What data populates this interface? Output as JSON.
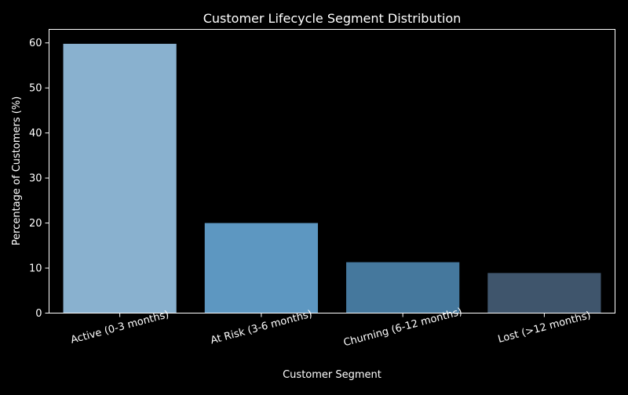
{
  "chart_data": {
    "type": "bar",
    "title": "Customer Lifecycle Segment Distribution",
    "xlabel": "Customer Segment",
    "ylabel": "Percentage of Customers (%)",
    "categories": [
      "Active (0-3 months)",
      "At Risk (3-6 months)",
      "Churning (6-12 months)",
      "Lost (>12 months)"
    ],
    "values": [
      59.8,
      20.0,
      11.3,
      8.9
    ],
    "ylim": [
      0,
      63
    ],
    "yticks": [
      "0",
      "10",
      "20",
      "30",
      "40",
      "50",
      "60"
    ],
    "bar_colors": [
      "#89b1cf",
      "#5d97c1",
      "#45789d",
      "#3f556c"
    ],
    "grid": false,
    "legend": "none"
  },
  "colors": {
    "background": "#000000",
    "axes": "#ffffff",
    "text": "#ffffff"
  }
}
